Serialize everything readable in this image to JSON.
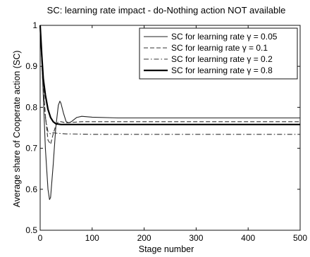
{
  "chart_data": {
    "type": "line",
    "title": "SC: learning rate impact - do-Nothing action NOT available",
    "xlabel": "Stage number",
    "ylabel": "Average share of Cooperate action (SC)",
    "xlim": [
      0,
      500
    ],
    "ylim": [
      0.5,
      1
    ],
    "xticks": [
      0,
      100,
      200,
      300,
      400,
      500
    ],
    "yticks": [
      0.5,
      0.6,
      0.7,
      0.8,
      0.9,
      1
    ],
    "grid": false,
    "legend_position": "top-right",
    "series": [
      {
        "name": "SC for learning rate γ = 0.05",
        "style": "solid-thin",
        "x": [
          0,
          5,
          10,
          15,
          18,
          20,
          25,
          30,
          35,
          38,
          40,
          45,
          50,
          55,
          60,
          70,
          80,
          100,
          150,
          200,
          300,
          400,
          500
        ],
        "y": [
          1.0,
          0.86,
          0.7,
          0.6,
          0.575,
          0.58,
          0.66,
          0.75,
          0.805,
          0.815,
          0.81,
          0.785,
          0.765,
          0.762,
          0.765,
          0.775,
          0.778,
          0.776,
          0.774,
          0.774,
          0.774,
          0.774,
          0.774
        ]
      },
      {
        "name": "SC for learnig rate γ = 0.1",
        "style": "dashed",
        "x": [
          0,
          5,
          10,
          15,
          20,
          25,
          30,
          35,
          40,
          50,
          60,
          80,
          100,
          200,
          300,
          400,
          500
        ],
        "y": [
          1.0,
          0.88,
          0.78,
          0.72,
          0.71,
          0.735,
          0.755,
          0.765,
          0.765,
          0.762,
          0.763,
          0.765,
          0.765,
          0.765,
          0.765,
          0.765,
          0.765
        ]
      },
      {
        "name": "SC for learning rate γ = 0.2",
        "style": "dashdot",
        "x": [
          0,
          5,
          10,
          15,
          20,
          25,
          30,
          40,
          50,
          60,
          100,
          200,
          300,
          400,
          500
        ],
        "y": [
          1.0,
          0.86,
          0.775,
          0.74,
          0.735,
          0.738,
          0.737,
          0.736,
          0.735,
          0.735,
          0.734,
          0.734,
          0.734,
          0.734,
          0.734
        ]
      },
      {
        "name": "SC for learning rate γ = 0.8",
        "style": "solid-thick",
        "x": [
          0,
          3,
          6,
          10,
          15,
          20,
          25,
          30,
          40,
          50,
          60,
          100,
          200,
          300,
          400,
          500
        ],
        "y": [
          1.0,
          0.93,
          0.87,
          0.83,
          0.795,
          0.775,
          0.765,
          0.76,
          0.758,
          0.758,
          0.758,
          0.758,
          0.758,
          0.758,
          0.758,
          0.758
        ]
      }
    ]
  }
}
